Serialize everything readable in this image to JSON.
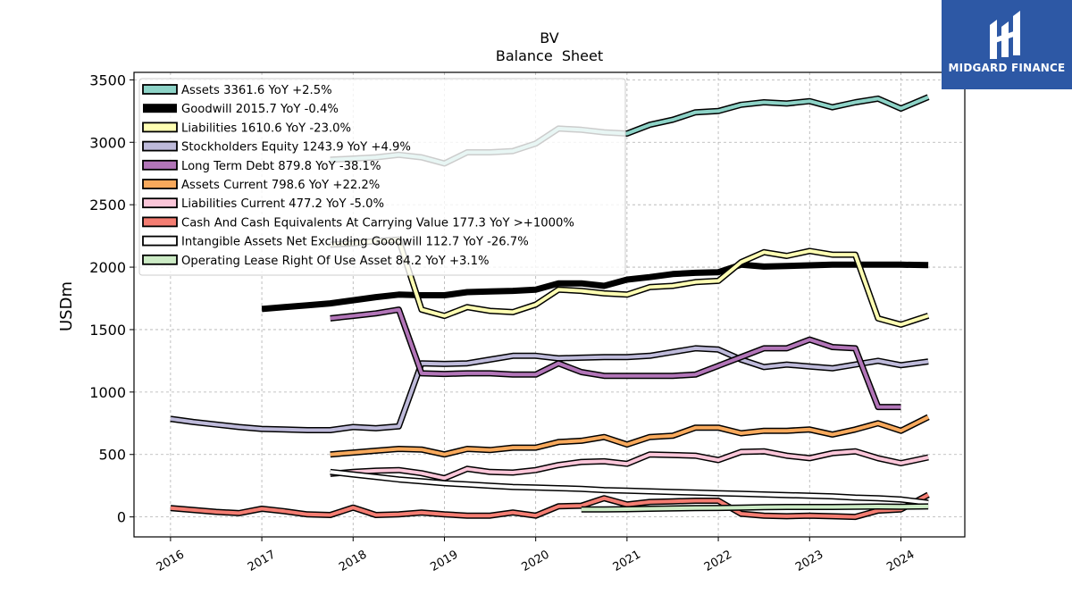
{
  "chart_data": {
    "type": "line",
    "title": "BV",
    "subtitle": "Balance  Sheet",
    "ylabel": "USDm",
    "xlabel": "",
    "xlim": [
      2015.6,
      2024.7
    ],
    "ylim": [
      -160,
      3560
    ],
    "yticks": [
      0,
      500,
      1000,
      1500,
      2000,
      2500,
      3000,
      3500
    ],
    "xticks": [
      2016,
      2017,
      2018,
      2019,
      2020,
      2021,
      2022,
      2023,
      2024
    ],
    "grid": true,
    "legend_position": "top-left",
    "series": [
      {
        "name": "Assets  3361.6 YoY +2.5%",
        "color": "#8dd3c7",
        "width": 4,
        "x": [
          2017.75,
          2018.0,
          2018.25,
          2018.5,
          2018.75,
          2019.0,
          2019.25,
          2019.5,
          2019.75,
          2020.0,
          2020.25,
          2020.5,
          2020.75,
          2021.0,
          2021.25,
          2021.5,
          2021.75,
          2022.0,
          2022.25,
          2022.5,
          2022.75,
          2023.0,
          2023.25,
          2023.5,
          2023.75,
          2024.0,
          2024.3
        ],
        "y": [
          2860,
          2870,
          2880,
          2900,
          2880,
          2830,
          2920,
          2920,
          2930,
          2990,
          3110,
          3100,
          3080,
          3070,
          3140,
          3180,
          3240,
          3250,
          3300,
          3320,
          3310,
          3330,
          3280,
          3320,
          3350,
          3270,
          3362
        ]
      },
      {
        "name": "Goodwill  2015.7 YoY -0.4%",
        "color": "#000000",
        "width": 7,
        "x": [
          2017.0,
          2017.25,
          2017.5,
          2017.75,
          2018.0,
          2018.25,
          2018.5,
          2018.75,
          2019.0,
          2019.25,
          2019.5,
          2019.75,
          2020.0,
          2020.25,
          2020.5,
          2020.75,
          2021.0,
          2021.25,
          2021.5,
          2021.75,
          2022.0,
          2022.25,
          2022.5,
          2022.75,
          2023.0,
          2023.25,
          2023.5,
          2023.75,
          2024.0,
          2024.3
        ],
        "y": [
          1665,
          1680,
          1695,
          1710,
          1735,
          1760,
          1780,
          1775,
          1775,
          1800,
          1805,
          1810,
          1820,
          1870,
          1870,
          1850,
          1900,
          1920,
          1945,
          1955,
          1960,
          2020,
          2005,
          2010,
          2015,
          2020,
          2020,
          2020,
          2020,
          2016
        ]
      },
      {
        "name": "Liabilities  1610.6 YoY -23.0%",
        "color": "#ffffb3",
        "width": 4,
        "x": [
          2017.75,
          2018.0,
          2018.25,
          2018.5,
          2018.75,
          2019.0,
          2019.25,
          2019.5,
          2019.75,
          2020.0,
          2020.25,
          2020.5,
          2020.75,
          2021.0,
          2021.25,
          2021.5,
          2021.75,
          2022.0,
          2022.25,
          2022.5,
          2022.75,
          2023.0,
          2023.25,
          2023.5,
          2023.75,
          2024.0,
          2024.3
        ],
        "y": [
          2180,
          2190,
          2210,
          2220,
          1660,
          1610,
          1680,
          1650,
          1640,
          1700,
          1820,
          1810,
          1790,
          1780,
          1840,
          1850,
          1880,
          1890,
          2040,
          2120,
          2090,
          2130,
          2100,
          2100,
          1590,
          1540,
          1611
        ]
      },
      {
        "name": "Stockholders Equity  1243.9 YoY +4.9%",
        "color": "#bebada",
        "width": 4,
        "x": [
          2016.0,
          2016.25,
          2016.5,
          2016.75,
          2017.0,
          2017.25,
          2017.5,
          2017.75,
          2018.0,
          2018.25,
          2018.5,
          2018.75,
          2019.0,
          2019.25,
          2019.5,
          2019.75,
          2020.0,
          2020.25,
          2020.5,
          2020.75,
          2021.0,
          2021.25,
          2021.5,
          2021.75,
          2022.0,
          2022.25,
          2022.5,
          2022.75,
          2023.0,
          2023.25,
          2023.5,
          2023.75,
          2024.0,
          2024.3
        ],
        "y": [
          785,
          760,
          740,
          720,
          705,
          700,
          695,
          695,
          720,
          710,
          725,
          1230,
          1225,
          1230,
          1260,
          1290,
          1290,
          1270,
          1275,
          1280,
          1280,
          1290,
          1320,
          1350,
          1340,
          1260,
          1200,
          1220,
          1205,
          1190,
          1220,
          1250,
          1215,
          1244
        ]
      },
      {
        "name": "Long Term Debt  879.8 YoY -38.1%",
        "color": "#b275b8",
        "width": 4,
        "x": [
          2017.75,
          2018.0,
          2018.25,
          2018.5,
          2018.75,
          2019.0,
          2019.25,
          2019.5,
          2019.75,
          2020.0,
          2020.25,
          2020.5,
          2020.75,
          2021.0,
          2021.25,
          2021.5,
          2021.75,
          2022.0,
          2022.25,
          2022.5,
          2022.75,
          2023.0,
          2023.25,
          2023.5,
          2023.75,
          2024.0
        ],
        "y": [
          1590,
          1610,
          1630,
          1660,
          1150,
          1145,
          1150,
          1150,
          1140,
          1140,
          1230,
          1160,
          1130,
          1130,
          1130,
          1130,
          1140,
          1210,
          1280,
          1350,
          1350,
          1420,
          1360,
          1350,
          880,
          880
        ]
      },
      {
        "name": "Assets Current  798.6 YoY +22.2%",
        "color": "#f8a95c",
        "width": 4,
        "x": [
          2017.75,
          2018.0,
          2018.25,
          2018.5,
          2018.75,
          2019.0,
          2019.25,
          2019.5,
          2019.75,
          2020.0,
          2020.25,
          2020.5,
          2020.75,
          2021.0,
          2021.25,
          2021.5,
          2021.75,
          2022.0,
          2022.25,
          2022.5,
          2022.75,
          2023.0,
          2023.25,
          2023.5,
          2023.75,
          2024.0,
          2024.3
        ],
        "y": [
          500,
          515,
          530,
          545,
          540,
          500,
          545,
          535,
          555,
          555,
          600,
          610,
          640,
          580,
          640,
          650,
          715,
          715,
          670,
          690,
          690,
          700,
          660,
          700,
          750,
          690,
          799
        ]
      },
      {
        "name": "Liabilities Current  477.2 YoY -5.0%",
        "color": "#fbc6d9",
        "width": 4,
        "x": [
          2017.75,
          2018.0,
          2018.25,
          2018.5,
          2018.75,
          2019.0,
          2019.25,
          2019.5,
          2019.75,
          2020.0,
          2020.25,
          2020.5,
          2020.75,
          2021.0,
          2021.25,
          2021.5,
          2021.75,
          2022.0,
          2022.25,
          2022.5,
          2022.75,
          2023.0,
          2023.25,
          2023.5,
          2023.75,
          2024.0,
          2024.3
        ],
        "y": [
          345,
          360,
          370,
          375,
          350,
          310,
          385,
          360,
          355,
          375,
          415,
          440,
          445,
          425,
          500,
          495,
          490,
          455,
          520,
          525,
          490,
          470,
          510,
          525,
          470,
          430,
          477
        ]
      },
      {
        "name": "Cash And Cash Equivalents At Carrying Value  177.3 YoY >+1000%",
        "color": "#f47d72",
        "width": 4,
        "x": [
          2016.0,
          2016.25,
          2016.5,
          2016.75,
          2017.0,
          2017.25,
          2017.5,
          2017.75,
          2018.0,
          2018.25,
          2018.5,
          2018.75,
          2019.0,
          2019.25,
          2019.5,
          2019.75,
          2020.0,
          2020.25,
          2020.5,
          2020.75,
          2021.0,
          2021.25,
          2021.5,
          2021.75,
          2022.0,
          2022.25,
          2022.5,
          2022.75,
          2023.0,
          2023.25,
          2023.5,
          2023.75,
          2024.0,
          2024.3
        ],
        "y": [
          70,
          55,
          40,
          30,
          65,
          45,
          20,
          15,
          75,
          15,
          20,
          35,
          20,
          10,
          10,
          35,
          10,
          85,
          90,
          150,
          100,
          120,
          125,
          130,
          130,
          25,
          10,
          5,
          10,
          5,
          0,
          50,
          60,
          177
        ]
      },
      {
        "name": "Intangible Assets Net Excluding Goodwill  112.7 YoY -26.7%",
        "color": "#ffffff",
        "width": 4,
        "x": [
          2017.75,
          2018.0,
          2018.25,
          2018.5,
          2018.75,
          2019.0,
          2019.25,
          2019.5,
          2019.75,
          2020.0,
          2020.25,
          2020.5,
          2020.75,
          2021.0,
          2021.25,
          2021.5,
          2021.75,
          2022.0,
          2022.25,
          2022.5,
          2022.75,
          2023.0,
          2023.25,
          2023.5,
          2023.75,
          2024.0,
          2024.3
        ],
        "y": [
          360,
          340,
          320,
          300,
          285,
          270,
          260,
          250,
          240,
          235,
          230,
          225,
          215,
          210,
          205,
          200,
          195,
          190,
          185,
          180,
          175,
          170,
          165,
          155,
          150,
          140,
          113
        ]
      },
      {
        "name": "Operating Lease Right Of Use Asset  84.2 YoY +3.1%",
        "color": "#ccebc5",
        "width": 4,
        "x": [
          2020.5,
          2020.75,
          2021.0,
          2021.25,
          2021.5,
          2021.75,
          2022.0,
          2022.25,
          2022.5,
          2022.75,
          2023.0,
          2023.25,
          2023.5,
          2023.75,
          2024.0,
          2024.3
        ],
        "y": [
          60,
          60,
          62,
          65,
          68,
          70,
          72,
          75,
          78,
          80,
          80,
          80,
          82,
          83,
          82,
          84
        ]
      }
    ]
  },
  "logo": {
    "text": "MIDGARD FINANCE",
    "color": "#2d58a5"
  }
}
